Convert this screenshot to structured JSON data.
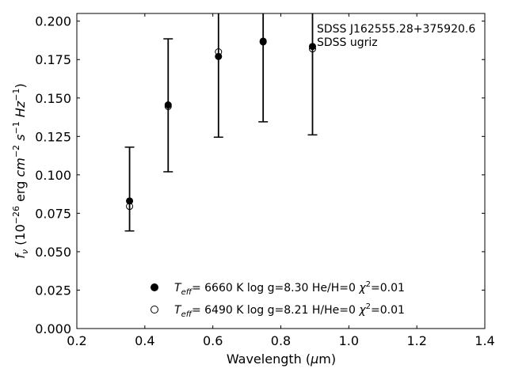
{
  "chart_data": {
    "type": "scatter",
    "xlabel": "Wavelength (μm)",
    "ylabel": "f_ν (10^-26 erg cm^-2 s^-1 Hz^-1)",
    "xlim": [
      0.2,
      1.4
    ],
    "ylim": [
      0.0,
      0.205
    ],
    "xticks": [
      0.2,
      0.4,
      0.6,
      0.8,
      1.0,
      1.2,
      1.4
    ],
    "yticks": [
      0.0,
      0.025,
      0.05,
      0.075,
      0.1,
      0.125,
      0.15,
      0.175,
      0.2
    ],
    "xtick_labels": [
      "0.2",
      "0.4",
      "0.6",
      "0.8",
      "1.0",
      "1.2",
      "1.4"
    ],
    "ytick_labels": [
      "0.000",
      "0.025",
      "0.050",
      "0.075",
      "0.100",
      "0.125",
      "0.150",
      "0.175",
      "0.200"
    ],
    "grid": false,
    "annotation": [
      "SDSS J162555.28+375920.6",
      "SDSS ugriz"
    ],
    "observed": {
      "x": [
        0.3551,
        0.4686,
        0.6166,
        0.748,
        0.8932
      ],
      "y": [
        0.0905,
        0.145,
        0.178,
        0.187,
        0.183
      ],
      "yerr_low": [
        0.0635,
        0.102,
        0.1245,
        0.1345,
        0.126
      ],
      "yerr_high": [
        0.118,
        0.1885,
        0.205,
        0.205,
        0.205
      ]
    },
    "series": [
      {
        "marker": "filled-circle",
        "label": "T_eff= 6660 K log g=8.30 He/H=0 χ²=0.01",
        "x": [
          0.3551,
          0.4686,
          0.6166,
          0.748,
          0.8932
        ],
        "y": [
          0.083,
          0.1455,
          0.177,
          0.187,
          0.1835
        ]
      },
      {
        "marker": "open-circle",
        "label": "T_eff= 6490 K log g=8.21 H/He=0 χ²=0.01",
        "x": [
          0.3551,
          0.4686,
          0.6166,
          0.748,
          0.8932
        ],
        "y": [
          0.0795,
          0.1445,
          0.18,
          0.1865,
          0.182
        ]
      }
    ],
    "legend": [
      {
        "marker": "filled-circle",
        "teff_value": "6660 K",
        "logg": "log g=8.30",
        "comp": "He/H=0",
        "chi": "=0.01"
      },
      {
        "marker": "open-circle",
        "teff_value": "6490 K",
        "logg": "log g=8.21",
        "comp": "H/He=0",
        "chi": "=0.01"
      }
    ],
    "legend_position": "lower-center"
  }
}
